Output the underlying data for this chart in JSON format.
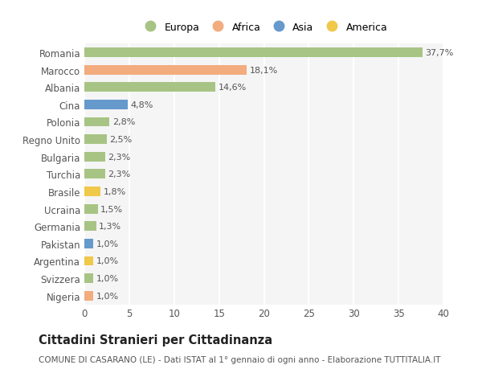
{
  "countries": [
    "Romania",
    "Marocco",
    "Albania",
    "Cina",
    "Polonia",
    "Regno Unito",
    "Bulgaria",
    "Turchia",
    "Brasile",
    "Ucraina",
    "Germania",
    "Pakistan",
    "Argentina",
    "Svizzera",
    "Nigeria"
  ],
  "values": [
    37.7,
    18.1,
    14.6,
    4.8,
    2.8,
    2.5,
    2.3,
    2.3,
    1.8,
    1.5,
    1.3,
    1.0,
    1.0,
    1.0,
    1.0
  ],
  "labels": [
    "37,7%",
    "18,1%",
    "14,6%",
    "4,8%",
    "2,8%",
    "2,5%",
    "2,3%",
    "2,3%",
    "1,8%",
    "1,5%",
    "1,3%",
    "1,0%",
    "1,0%",
    "1,0%",
    "1,0%"
  ],
  "continents": [
    "Europa",
    "Africa",
    "Europa",
    "Asia",
    "Europa",
    "Europa",
    "Europa",
    "Europa",
    "America",
    "Europa",
    "Europa",
    "Asia",
    "America",
    "Europa",
    "Africa"
  ],
  "continent_colors": {
    "Europa": "#a8c484",
    "Africa": "#f2ac7e",
    "Asia": "#6699cc",
    "America": "#f0c84a"
  },
  "legend_order": [
    "Europa",
    "Africa",
    "Asia",
    "America"
  ],
  "title": "Cittadini Stranieri per Cittadinanza",
  "subtitle": "COMUNE DI CASARANO (LE) - Dati ISTAT al 1° gennaio di ogni anno - Elaborazione TUTTITALIA.IT",
  "xlim": [
    0,
    40
  ],
  "xticks": [
    0,
    5,
    10,
    15,
    20,
    25,
    30,
    35,
    40
  ],
  "background_color": "#ffffff",
  "plot_bg_color": "#f5f5f5",
  "grid_color": "#ffffff",
  "bar_height": 0.55,
  "label_fontsize": 8,
  "tick_fontsize": 8.5,
  "title_fontsize": 10.5,
  "subtitle_fontsize": 7.5,
  "legend_fontsize": 9
}
